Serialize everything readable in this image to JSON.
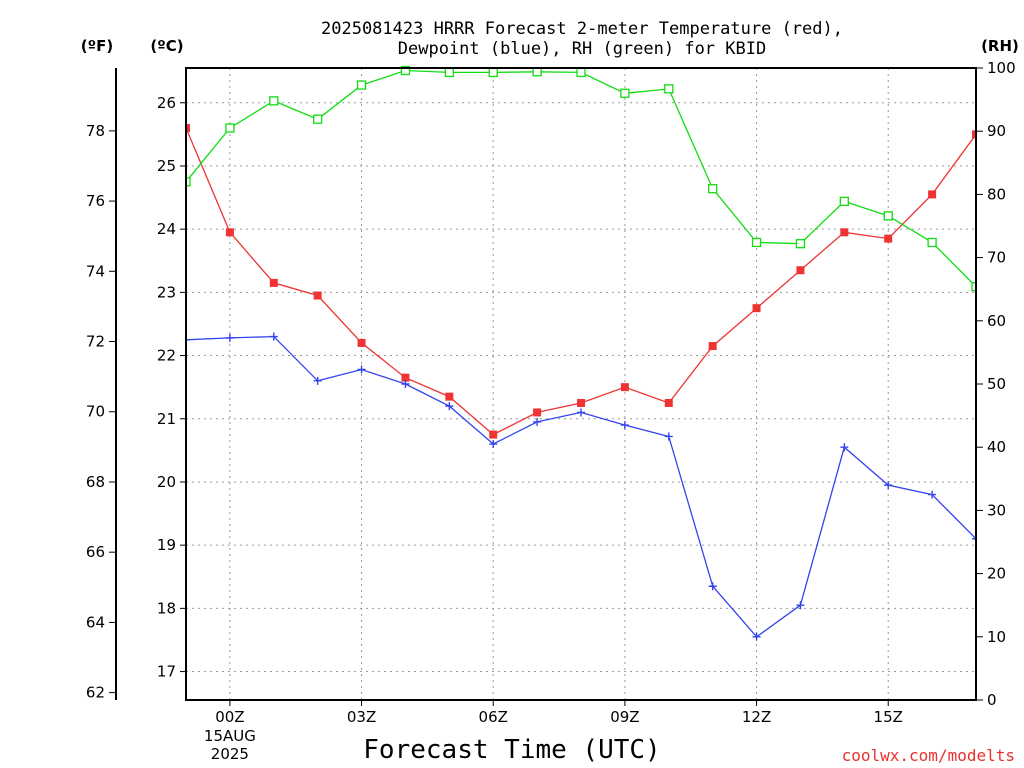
{
  "chart_data": {
    "type": "line",
    "title_lines": [
      "2025081423 HRRR Forecast 2-meter Temperature (red),",
      "Dewpoint (blue), RH (green) for KBID"
    ],
    "xlabel": "Forecast Time (UTC)",
    "credit": "coolwx.com/modelts",
    "units": {
      "fahrenheit": "(ºF)",
      "celsius": "(ºC)",
      "rh": "(RH)"
    },
    "x_hours": [
      -1,
      0,
      1,
      2,
      3,
      4,
      5,
      6,
      7,
      8,
      9,
      10,
      11,
      12,
      13,
      14,
      15,
      16,
      17
    ],
    "x_range": [
      -1,
      17
    ],
    "x_ticks": [
      {
        "hour": 0,
        "label": "00Z",
        "sub": [
          "15AUG",
          "2025"
        ]
      },
      {
        "hour": 3,
        "label": "03Z"
      },
      {
        "hour": 6,
        "label": "06Z"
      },
      {
        "hour": 9,
        "label": "09Z"
      },
      {
        "hour": 12,
        "label": "12Z"
      },
      {
        "hour": 15,
        "label": "15Z"
      }
    ],
    "celsius_range": [
      16.55,
      26.55
    ],
    "celsius_ticks": [
      "17",
      "18",
      "19",
      "20",
      "21",
      "22",
      "23",
      "24",
      "25",
      "26"
    ],
    "fahrenheit_ticks": [
      "62",
      "64",
      "66",
      "68",
      "70",
      "72",
      "74",
      "76",
      "78"
    ],
    "rh_range": [
      0,
      100
    ],
    "rh_ticks": [
      "0",
      "10",
      "20",
      "30",
      "40",
      "50",
      "60",
      "70",
      "80",
      "90",
      "100"
    ],
    "series": [
      {
        "name": "Temperature",
        "axis": "celsius",
        "color": "#ee3333",
        "marker": "square-filled",
        "values": [
          25.6,
          23.95,
          23.15,
          22.95,
          22.2,
          21.65,
          21.35,
          20.75,
          21.1,
          21.25,
          21.5,
          21.25,
          22.15,
          22.75,
          23.35,
          23.95,
          23.85,
          24.55,
          25.5
        ]
      },
      {
        "name": "Dewpoint",
        "axis": "celsius",
        "color": "#3344ee",
        "marker": "plus",
        "values": [
          22.25,
          22.28,
          22.3,
          21.6,
          21.78,
          21.55,
          21.2,
          20.6,
          20.95,
          21.1,
          20.9,
          20.72,
          18.35,
          17.55,
          18.05,
          20.55,
          19.95,
          19.8,
          19.1
        ]
      },
      {
        "name": "RH",
        "axis": "rh",
        "color": "#11dd11",
        "marker": "square-open",
        "values": [
          82,
          90.5,
          94.8,
          91.9,
          97.3,
          99.6,
          99.3,
          99.3,
          99.4,
          99.3,
          96.0,
          96.7,
          80.9,
          72.4,
          72.2,
          78.9,
          76.6,
          72.4,
          65.4
        ]
      }
    ]
  }
}
